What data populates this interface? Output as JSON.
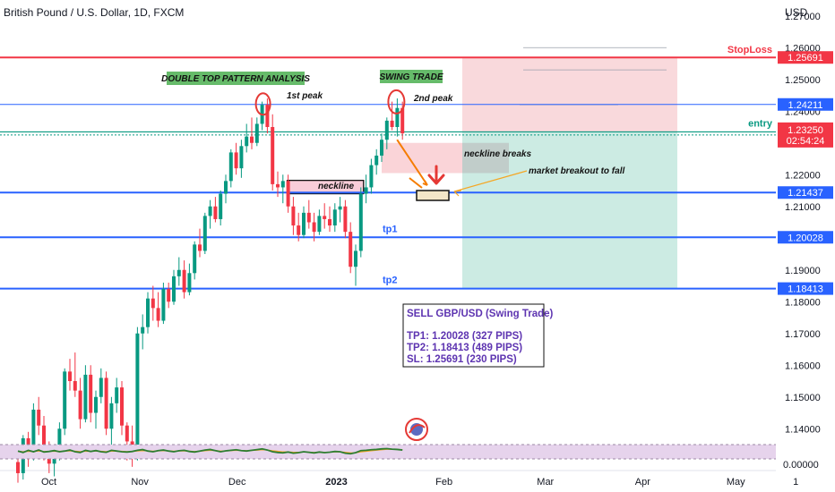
{
  "chart_data": {
    "type": "candlestick",
    "title": "British Pound / U.S. Dollar, 1D, FXCM",
    "currency_label": "USD",
    "y_ticks": [
      "1.27000",
      "1.26000",
      "1.25000",
      "1.24000",
      "1.23000",
      "1.22000",
      "1.21000",
      "1.20000",
      "1.19000",
      "1.18000",
      "1.17000",
      "1.16000",
      "1.15000",
      "1.14000"
    ],
    "y_tick_values": [
      1.27,
      1.26,
      1.25,
      1.24,
      1.23,
      1.22,
      1.21,
      1.2,
      1.19,
      1.18,
      1.17,
      1.16,
      1.15,
      1.14
    ],
    "x_labels": [
      "Oct",
      "Nov",
      "Dec",
      "2023",
      "Feb",
      "Mar",
      "Apr",
      "May",
      "1"
    ],
    "x_label_positions": [
      0.5,
      4.9,
      9.6,
      14.4,
      19.6,
      24.5,
      29.2,
      33.7,
      36.6
    ],
    "levels": [
      {
        "name": "stoploss",
        "label": "StopLoss",
        "value": "1.25691",
        "price": 1.25691,
        "color": "#f23645"
      },
      {
        "name": "second-peak",
        "value": "1.24211",
        "price": 1.24211,
        "color": "#2962ff"
      },
      {
        "name": "entry",
        "label": "entry",
        "value": "1.23347",
        "price": 1.23347,
        "color": "#089981"
      },
      {
        "name": "current",
        "value": "1.23250",
        "price": 1.2325,
        "timer": "02:54:24",
        "color": "#f23645"
      },
      {
        "name": "neckline",
        "value": "1.21437",
        "price": 1.21437,
        "color": "#2962ff"
      },
      {
        "name": "tp1",
        "label": "tp1",
        "value": "1.20028",
        "price": 1.20028,
        "color": "#2962ff"
      },
      {
        "name": "tp2",
        "label": "tp2",
        "value": "1.18413",
        "price": 1.18413,
        "color": "#2962ff"
      }
    ],
    "candles": [
      [
        1.1295,
        1.1315,
        1.123,
        1.126
      ],
      [
        1.126,
        1.138,
        1.124,
        1.137
      ],
      [
        1.137,
        1.139,
        1.128,
        1.131
      ],
      [
        1.131,
        1.148,
        1.13,
        1.146
      ],
      [
        1.146,
        1.15,
        1.138,
        1.141
      ],
      [
        1.141,
        1.144,
        1.13,
        1.134
      ],
      [
        1.134,
        1.136,
        1.126,
        1.129
      ],
      [
        1.129,
        1.133,
        1.125,
        1.132
      ],
      [
        1.132,
        1.142,
        1.13,
        1.14
      ],
      [
        1.14,
        1.159,
        1.138,
        1.158
      ],
      [
        1.158,
        1.162,
        1.152,
        1.155
      ],
      [
        1.155,
        1.164,
        1.15,
        1.152
      ],
      [
        1.152,
        1.156,
        1.14,
        1.143
      ],
      [
        1.143,
        1.16,
        1.142,
        1.157
      ],
      [
        1.157,
        1.16,
        1.142,
        1.145
      ],
      [
        1.145,
        1.152,
        1.14,
        1.15
      ],
      [
        1.15,
        1.159,
        1.148,
        1.156
      ],
      [
        1.156,
        1.158,
        1.138,
        1.14
      ],
      [
        1.14,
        1.15,
        1.133,
        1.148
      ],
      [
        1.148,
        1.156,
        1.145,
        1.153
      ],
      [
        1.153,
        1.155,
        1.138,
        1.141
      ],
      [
        1.141,
        1.142,
        1.13,
        1.136
      ],
      [
        1.136,
        1.141,
        1.128,
        1.131
      ],
      [
        1.131,
        1.172,
        1.13,
        1.17
      ],
      [
        1.17,
        1.176,
        1.165,
        1.172
      ],
      [
        1.172,
        1.183,
        1.17,
        1.181
      ],
      [
        1.181,
        1.185,
        1.174,
        1.178
      ],
      [
        1.178,
        1.183,
        1.172,
        1.174
      ],
      [
        1.174,
        1.186,
        1.173,
        1.184
      ],
      [
        1.184,
        1.186,
        1.178,
        1.18
      ],
      [
        1.18,
        1.19,
        1.179,
        1.188
      ],
      [
        1.188,
        1.194,
        1.185,
        1.19
      ],
      [
        1.19,
        1.193,
        1.181,
        1.183
      ],
      [
        1.183,
        1.192,
        1.182,
        1.189
      ],
      [
        1.189,
        1.199,
        1.187,
        1.198
      ],
      [
        1.198,
        1.203,
        1.194,
        1.196
      ],
      [
        1.196,
        1.208,
        1.195,
        1.207
      ],
      [
        1.207,
        1.212,
        1.203,
        1.21
      ],
      [
        1.21,
        1.213,
        1.205,
        1.206
      ],
      [
        1.206,
        1.215,
        1.204,
        1.214
      ],
      [
        1.214,
        1.22,
        1.211,
        1.218
      ],
      [
        1.218,
        1.228,
        1.216,
        1.227
      ],
      [
        1.227,
        1.23,
        1.22,
        1.222
      ],
      [
        1.222,
        1.231,
        1.219,
        1.229
      ],
      [
        1.229,
        1.236,
        1.227,
        1.232
      ],
      [
        1.232,
        1.238,
        1.228,
        1.23
      ],
      [
        1.23,
        1.238,
        1.229,
        1.236
      ],
      [
        1.236,
        1.243,
        1.234,
        1.242
      ],
      [
        1.242,
        1.244,
        1.233,
        1.235
      ],
      [
        1.235,
        1.239,
        1.215,
        1.217
      ],
      [
        1.217,
        1.221,
        1.213,
        1.216
      ],
      [
        1.216,
        1.22,
        1.211,
        1.218
      ],
      [
        1.218,
        1.22,
        1.208,
        1.21
      ],
      [
        1.21,
        1.213,
        1.201,
        1.204
      ],
      [
        1.204,
        1.208,
        1.199,
        1.201
      ],
      [
        1.201,
        1.21,
        1.2,
        1.208
      ],
      [
        1.208,
        1.212,
        1.203,
        1.205
      ],
      [
        1.205,
        1.208,
        1.199,
        1.202
      ],
      [
        1.202,
        1.209,
        1.201,
        1.207
      ],
      [
        1.207,
        1.211,
        1.203,
        1.206
      ],
      [
        1.206,
        1.21,
        1.202,
        1.204
      ],
      [
        1.204,
        1.211,
        1.202,
        1.209
      ],
      [
        1.209,
        1.213,
        1.205,
        1.21
      ],
      [
        1.21,
        1.212,
        1.2,
        1.202
      ],
      [
        1.202,
        1.205,
        1.189,
        1.191
      ],
      [
        1.191,
        1.198,
        1.185,
        1.196
      ],
      [
        1.196,
        1.216,
        1.194,
        1.214
      ],
      [
        1.214,
        1.22,
        1.211,
        1.216
      ],
      [
        1.216,
        1.225,
        1.214,
        1.223
      ],
      [
        1.223,
        1.228,
        1.22,
        1.226
      ],
      [
        1.226,
        1.233,
        1.224,
        1.231
      ],
      [
        1.231,
        1.238,
        1.228,
        1.237
      ],
      [
        1.237,
        1.243,
        1.234,
        1.235
      ],
      [
        1.235,
        1.244,
        1.232,
        1.241
      ],
      [
        1.241,
        1.243,
        1.231,
        1.233
      ]
    ],
    "annotations": {
      "double_top_title": "DOUBLE TOP PATTERN ANALYSIS",
      "swing_trade_title": "SWING TRADE",
      "first_peak": "1st peak",
      "second_peak": "2nd peak",
      "neckline": "neckline",
      "neckline_breaks": "neckline breaks",
      "market_breakout": "market breakout to fall"
    },
    "trade_box": {
      "title": "SELL GBP/USD (Swing Trade)",
      "lines": [
        "TP1: 1.20028 (327 PIPS)",
        "TP2: 1.18413 (489 PIPS)",
        "SL: 1.25691 (230 PIPS)"
      ]
    },
    "indicator": {
      "axis_label": "0.00000",
      "values": [
        0.55,
        0.45,
        0.6,
        0.5,
        0.62,
        0.48,
        0.52,
        0.58,
        0.5,
        0.55,
        0.62,
        0.5,
        0.45,
        0.6,
        0.52,
        0.58,
        0.5,
        0.46,
        0.6,
        0.55,
        0.5,
        0.48,
        0.52,
        0.6,
        0.65,
        0.55,
        0.5,
        0.58,
        0.62,
        0.55,
        0.5,
        0.57,
        0.6,
        0.52,
        0.48,
        0.55,
        0.62,
        0.66,
        0.58,
        0.5,
        0.56,
        0.6,
        0.64,
        0.58,
        0.55,
        0.6,
        0.65,
        0.7,
        0.62,
        0.5,
        0.45,
        0.42,
        0.48,
        0.4,
        0.44,
        0.5,
        0.46,
        0.42,
        0.48,
        0.44,
        0.47,
        0.52,
        0.5,
        0.4,
        0.36,
        0.44,
        0.58,
        0.6,
        0.64,
        0.66,
        0.7,
        0.72,
        0.68,
        0.66,
        0.62
      ],
      "signal": [
        0.52,
        0.5,
        0.53,
        0.52,
        0.55,
        0.52,
        0.52,
        0.54,
        0.53,
        0.54,
        0.56,
        0.54,
        0.51,
        0.54,
        0.53,
        0.55,
        0.53,
        0.51,
        0.54,
        0.54,
        0.53,
        0.51,
        0.52,
        0.55,
        0.58,
        0.56,
        0.54,
        0.56,
        0.58,
        0.56,
        0.54,
        0.55,
        0.56,
        0.54,
        0.52,
        0.54,
        0.57,
        0.6,
        0.58,
        0.55,
        0.56,
        0.58,
        0.6,
        0.59,
        0.57,
        0.59,
        0.61,
        0.64,
        0.62,
        0.57,
        0.53,
        0.49,
        0.49,
        0.46,
        0.46,
        0.48,
        0.47,
        0.45,
        0.47,
        0.46,
        0.47,
        0.49,
        0.49,
        0.46,
        0.42,
        0.43,
        0.49,
        0.53,
        0.57,
        0.61,
        0.64,
        0.67,
        0.67,
        0.66,
        0.64
      ]
    }
  }
}
